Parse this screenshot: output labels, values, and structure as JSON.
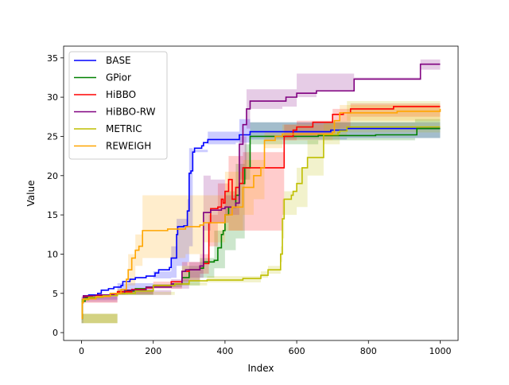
{
  "chart_data": {
    "type": "line",
    "title": "",
    "xlabel": "Index",
    "ylabel": "Value",
    "xlim": [
      -50,
      1050
    ],
    "ylim": [
      -1,
      36.5
    ],
    "xticks": [
      0,
      200,
      400,
      600,
      800,
      1000
    ],
    "yticks": [
      0,
      5,
      10,
      15,
      20,
      25,
      30,
      35
    ],
    "legend_position": "top-left",
    "series": [
      {
        "name": "BASE",
        "color": "#0000ff",
        "points": [
          [
            0,
            1.8
          ],
          [
            2,
            4.0
          ],
          [
            5,
            4.5
          ],
          [
            20,
            4.8
          ],
          [
            45,
            5.0
          ],
          [
            55,
            5.4
          ],
          [
            75,
            5.6
          ],
          [
            90,
            5.8
          ],
          [
            110,
            6.0
          ],
          [
            115,
            6.5
          ],
          [
            135,
            6.8
          ],
          [
            150,
            7.0
          ],
          [
            180,
            7.2
          ],
          [
            205,
            7.6
          ],
          [
            215,
            8.0
          ],
          [
            245,
            8.3
          ],
          [
            250,
            9.5
          ],
          [
            265,
            12.5
          ],
          [
            268,
            13.5
          ],
          [
            285,
            13.6
          ],
          [
            295,
            15.5
          ],
          [
            300,
            20.3
          ],
          [
            305,
            20.6
          ],
          [
            310,
            23.0
          ],
          [
            315,
            23.5
          ],
          [
            335,
            23.8
          ],
          [
            340,
            24.2
          ],
          [
            352,
            24.6
          ],
          [
            430,
            24.6
          ],
          [
            440,
            25.2
          ],
          [
            470,
            25.6
          ],
          [
            690,
            25.6
          ],
          [
            695,
            25.8
          ],
          [
            740,
            26.0
          ],
          [
            1000,
            26.0
          ]
        ],
        "band": [
          [
            0,
            1.2,
            2.4
          ],
          [
            5,
            4.2,
            4.8
          ],
          [
            100,
            5.5,
            6.3
          ],
          [
            200,
            6.9,
            7.8
          ],
          [
            250,
            7.0,
            11.0
          ],
          [
            265,
            8.5,
            14.5
          ],
          [
            295,
            9.0,
            17.0
          ],
          [
            300,
            11.0,
            23.5
          ],
          [
            310,
            23.0,
            23.3
          ],
          [
            352,
            24.0,
            25.6
          ],
          [
            430,
            24.2,
            25.6
          ],
          [
            440,
            24.2,
            27.2
          ],
          [
            470,
            24.6,
            26.8
          ],
          [
            740,
            24.8,
            26.8
          ],
          [
            1000,
            25.0,
            27.0
          ]
        ]
      },
      {
        "name": "GPior",
        "color": "#008000",
        "points": [
          [
            0,
            1.8
          ],
          [
            2,
            4.0
          ],
          [
            10,
            4.4
          ],
          [
            40,
            4.6
          ],
          [
            80,
            5.0
          ],
          [
            120,
            5.3
          ],
          [
            150,
            5.6
          ],
          [
            180,
            5.8
          ],
          [
            200,
            6.0
          ],
          [
            250,
            6.2
          ],
          [
            280,
            7.0
          ],
          [
            300,
            8.0
          ],
          [
            330,
            8.2
          ],
          [
            340,
            9.0
          ],
          [
            370,
            9.2
          ],
          [
            380,
            10.8
          ],
          [
            390,
            12.5
          ],
          [
            395,
            13.0
          ],
          [
            400,
            15.0
          ],
          [
            410,
            16.0
          ],
          [
            430,
            17.5
          ],
          [
            440,
            19.0
          ],
          [
            455,
            21.0
          ],
          [
            470,
            25.0
          ],
          [
            480,
            25.0
          ],
          [
            660,
            25.1
          ],
          [
            820,
            25.2
          ],
          [
            930,
            25.2
          ],
          [
            935,
            26.0
          ],
          [
            1000,
            26.0
          ]
        ],
        "band": [
          [
            0,
            1.2,
            2.4
          ],
          [
            100,
            4.8,
            5.5
          ],
          [
            200,
            5.8,
            6.2
          ],
          [
            280,
            6.0,
            8.5
          ],
          [
            330,
            7.0,
            9.5
          ],
          [
            370,
            8.2,
            13.0
          ],
          [
            400,
            10.5,
            18.0
          ],
          [
            430,
            12.0,
            21.5
          ],
          [
            455,
            19.5,
            24.0
          ],
          [
            470,
            24.0,
            26.8
          ],
          [
            660,
            24.5,
            26.8
          ],
          [
            840,
            24.5,
            26.8
          ],
          [
            930,
            24.8,
            27.2
          ],
          [
            1000,
            25.0,
            27.2
          ]
        ]
      },
      {
        "name": "HiBBO",
        "color": "#ff0000",
        "points": [
          [
            0,
            4.2
          ],
          [
            5,
            4.6
          ],
          [
            30,
            4.7
          ],
          [
            80,
            4.9
          ],
          [
            100,
            5.2
          ],
          [
            140,
            5.5
          ],
          [
            180,
            5.7
          ],
          [
            200,
            6.0
          ],
          [
            250,
            6.5
          ],
          [
            280,
            7.8
          ],
          [
            300,
            8.0
          ],
          [
            330,
            8.5
          ],
          [
            340,
            8.8
          ],
          [
            355,
            14.0
          ],
          [
            360,
            15.8
          ],
          [
            370,
            15.8
          ],
          [
            380,
            16.0
          ],
          [
            390,
            17.0
          ],
          [
            395,
            16.5
          ],
          [
            400,
            18.0
          ],
          [
            410,
            19.5
          ],
          [
            420,
            17.0
          ],
          [
            430,
            18.5
          ],
          [
            440,
            19.0
          ],
          [
            450,
            21.0
          ],
          [
            560,
            21.0
          ],
          [
            565,
            25.0
          ],
          [
            590,
            25.8
          ],
          [
            600,
            26.2
          ],
          [
            640,
            26.2
          ],
          [
            645,
            26.8
          ],
          [
            695,
            26.8
          ],
          [
            700,
            27.8
          ],
          [
            730,
            28.0
          ],
          [
            750,
            28.5
          ],
          [
            850,
            28.5
          ],
          [
            870,
            28.8
          ],
          [
            1000,
            28.8
          ]
        ],
        "band": [
          [
            0,
            3.8,
            4.6
          ],
          [
            100,
            4.9,
            5.5
          ],
          [
            200,
            5.6,
            6.5
          ],
          [
            280,
            6.5,
            9.0
          ],
          [
            330,
            7.5,
            10.0
          ],
          [
            355,
            11.0,
            15.0
          ],
          [
            380,
            14.0,
            19.0
          ],
          [
            410,
            13.0,
            22.5
          ],
          [
            450,
            13.0,
            23.0
          ],
          [
            560,
            15.0,
            23.0
          ],
          [
            565,
            24.5,
            26.5
          ],
          [
            600,
            25.0,
            27.0
          ],
          [
            700,
            26.0,
            28.5
          ],
          [
            750,
            27.5,
            29.2
          ],
          [
            1000,
            27.8,
            29.5
          ]
        ]
      },
      {
        "name": "HiBBO-RW",
        "color": "#800080",
        "points": [
          [
            0,
            4.2
          ],
          [
            5,
            4.7
          ],
          [
            40,
            4.8
          ],
          [
            90,
            5.0
          ],
          [
            120,
            5.4
          ],
          [
            180,
            5.8
          ],
          [
            250,
            6.2
          ],
          [
            280,
            7.8
          ],
          [
            290,
            8.0
          ],
          [
            330,
            8.5
          ],
          [
            340,
            15.3
          ],
          [
            360,
            15.6
          ],
          [
            390,
            15.8
          ],
          [
            400,
            16.0
          ],
          [
            430,
            16.5
          ],
          [
            440,
            24.0
          ],
          [
            450,
            26.5
          ],
          [
            460,
            28.5
          ],
          [
            470,
            29.5
          ],
          [
            560,
            29.5
          ],
          [
            570,
            30.0
          ],
          [
            590,
            30.0
          ],
          [
            600,
            30.5
          ],
          [
            650,
            30.5
          ],
          [
            655,
            30.8
          ],
          [
            750,
            30.8
          ],
          [
            760,
            32.3
          ],
          [
            940,
            32.3
          ],
          [
            945,
            34.2
          ],
          [
            1000,
            34.2
          ]
        ],
        "band": [
          [
            0,
            3.9,
            4.6
          ],
          [
            100,
            4.8,
            5.4
          ],
          [
            250,
            5.6,
            6.8
          ],
          [
            300,
            7.0,
            9.0
          ],
          [
            340,
            13.0,
            20.0
          ],
          [
            360,
            14.0,
            19.5
          ],
          [
            400,
            15.0,
            17.5
          ],
          [
            430,
            15.0,
            17.5
          ],
          [
            440,
            19.5,
            25.0
          ],
          [
            460,
            26.0,
            31.0
          ],
          [
            470,
            28.5,
            31.0
          ],
          [
            560,
            28.8,
            31.0
          ],
          [
            600,
            30.0,
            33.0
          ],
          [
            655,
            30.8,
            33.0
          ],
          [
            760,
            32.2,
            32.5
          ],
          [
            945,
            33.5,
            34.8
          ],
          [
            1000,
            33.5,
            34.8
          ]
        ]
      },
      {
        "name": "METRIC",
        "color": "#bfbf00",
        "points": [
          [
            0,
            1.8
          ],
          [
            2,
            4.2
          ],
          [
            20,
            4.5
          ],
          [
            60,
            4.7
          ],
          [
            100,
            5.0
          ],
          [
            150,
            5.3
          ],
          [
            200,
            6.0
          ],
          [
            260,
            6.2
          ],
          [
            300,
            6.6
          ],
          [
            350,
            6.7
          ],
          [
            450,
            6.9
          ],
          [
            500,
            7.3
          ],
          [
            520,
            8.0
          ],
          [
            550,
            8.0
          ],
          [
            555,
            10.0
          ],
          [
            560,
            14.5
          ],
          [
            565,
            17.0
          ],
          [
            585,
            17.5
          ],
          [
            590,
            18.0
          ],
          [
            600,
            19.0
          ],
          [
            615,
            21.0
          ],
          [
            630,
            22.3
          ],
          [
            670,
            22.3
          ],
          [
            675,
            25.2
          ],
          [
            715,
            25.5
          ],
          [
            720,
            25.7
          ],
          [
            740,
            26.2
          ],
          [
            1000,
            26.2
          ]
        ],
        "band": [
          [
            0,
            1.2,
            2.4
          ],
          [
            100,
            4.8,
            5.2
          ],
          [
            260,
            6.0,
            6.4
          ],
          [
            350,
            6.4,
            7.2
          ],
          [
            500,
            7.0,
            7.8
          ],
          [
            520,
            7.5,
            8.5
          ],
          [
            555,
            9.0,
            11.0
          ],
          [
            560,
            12.0,
            17.0
          ],
          [
            565,
            15.0,
            18.0
          ],
          [
            600,
            16.0,
            21.0
          ],
          [
            630,
            20.0,
            24.5
          ],
          [
            670,
            20.0,
            24.5
          ],
          [
            675,
            24.0,
            26.8
          ],
          [
            720,
            25.0,
            27.0
          ],
          [
            740,
            25.5,
            29.5
          ],
          [
            1000,
            26.0,
            29.5
          ]
        ]
      },
      {
        "name": "REWEIGH",
        "color": "#ffa500",
        "points": [
          [
            0,
            1.8
          ],
          [
            2,
            3.8
          ],
          [
            5,
            4.3
          ],
          [
            40,
            4.6
          ],
          [
            80,
            5.0
          ],
          [
            110,
            5.5
          ],
          [
            125,
            6.8
          ],
          [
            130,
            8.0
          ],
          [
            140,
            9.5
          ],
          [
            150,
            10.5
          ],
          [
            160,
            11.0
          ],
          [
            170,
            13.0
          ],
          [
            240,
            13.2
          ],
          [
            290,
            13.5
          ],
          [
            330,
            13.7
          ],
          [
            340,
            14.0
          ],
          [
            400,
            15.0
          ],
          [
            420,
            16.0
          ],
          [
            450,
            18.5
          ],
          [
            480,
            20.0
          ],
          [
            500,
            21.0
          ],
          [
            510,
            24.5
          ],
          [
            540,
            25.0
          ],
          [
            560,
            25.3
          ],
          [
            700,
            25.5
          ],
          [
            705,
            27.0
          ],
          [
            720,
            28.0
          ],
          [
            880,
            28.2
          ],
          [
            1000,
            28.5
          ]
        ],
        "band": [
          [
            0,
            1.2,
            2.4
          ],
          [
            100,
            4.8,
            5.5
          ],
          [
            130,
            6.0,
            10.0
          ],
          [
            150,
            8.5,
            12.5
          ],
          [
            170,
            9.5,
            17.5
          ],
          [
            240,
            9.5,
            17.5
          ],
          [
            290,
            10.0,
            17.5
          ],
          [
            340,
            11.5,
            17.5
          ],
          [
            400,
            13.0,
            20.5
          ],
          [
            450,
            15.0,
            22.0
          ],
          [
            480,
            17.0,
            22.0
          ],
          [
            510,
            23.5,
            25.5
          ],
          [
            560,
            24.5,
            26.5
          ],
          [
            700,
            25.0,
            27.0
          ],
          [
            720,
            27.0,
            29.0
          ],
          [
            1000,
            27.5,
            29.5
          ]
        ]
      }
    ]
  }
}
